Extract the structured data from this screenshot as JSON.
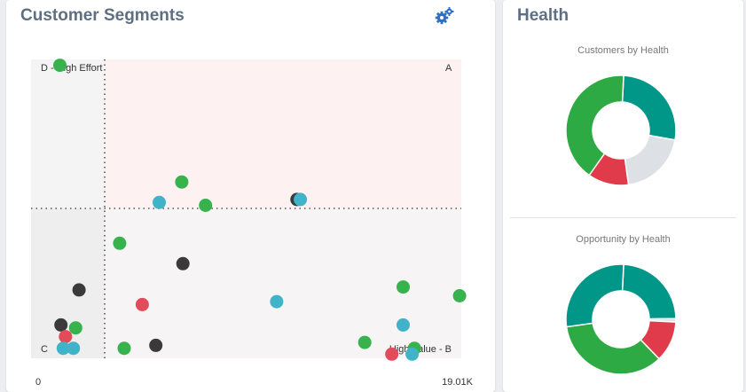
{
  "segments": {
    "title": "Customer Segments",
    "settings_icon": "gears-icon",
    "quadrant_labels": {
      "d": "D - High Effort",
      "a": "A",
      "c": "C",
      "b": "High Value - B"
    },
    "x_axis": {
      "min_label": "0",
      "max_label": "19.01K"
    }
  },
  "health": {
    "title": "Health",
    "customers_title": "Customers by Health",
    "opportunity_title": "Opportunity by Health"
  },
  "colors": {
    "green": "#37b24d",
    "teal": "#40b3c9",
    "red": "#e24b59",
    "dark": "#3a3a3a",
    "donut_teal": "#009688",
    "donut_green": "#2eaa45",
    "donut_red": "#e03b4a",
    "donut_gray": "#dde1e5",
    "title": "#5f6f82",
    "icon_blue": "#2f6fc4"
  },
  "chart_data": [
    {
      "type": "scatter",
      "title": "Customer Segments",
      "xlim": [
        0,
        19010
      ],
      "ylim": [
        0,
        1
      ],
      "quadrants": [
        "D - High Effort",
        "A",
        "C",
        "High Value - B"
      ],
      "points": [
        {
          "x": 1000,
          "y": 0.98,
          "color": "green"
        },
        {
          "x": 6400,
          "y": 0.58,
          "color": "green"
        },
        {
          "x": 5400,
          "y": 0.51,
          "color": "teal"
        },
        {
          "x": 7450,
          "y": 0.5,
          "color": "green"
        },
        {
          "x": 11500,
          "y": 0.52,
          "color": "dark"
        },
        {
          "x": 11650,
          "y": 0.52,
          "color": "teal"
        },
        {
          "x": 3650,
          "y": 0.37,
          "color": "green"
        },
        {
          "x": 6450,
          "y": 0.3,
          "color": "dark"
        },
        {
          "x": 1850,
          "y": 0.21,
          "color": "dark"
        },
        {
          "x": 16200,
          "y": 0.22,
          "color": "green"
        },
        {
          "x": 18700,
          "y": 0.19,
          "color": "green"
        },
        {
          "x": 4650,
          "y": 0.16,
          "color": "red"
        },
        {
          "x": 10600,
          "y": 0.17,
          "color": "teal"
        },
        {
          "x": 1050,
          "y": 0.09,
          "color": "dark"
        },
        {
          "x": 1700,
          "y": 0.08,
          "color": "green"
        },
        {
          "x": 16200,
          "y": 0.09,
          "color": "teal"
        },
        {
          "x": 1250,
          "y": 0.05,
          "color": "red"
        },
        {
          "x": 1150,
          "y": 0.01,
          "color": "teal"
        },
        {
          "x": 1600,
          "y": 0.01,
          "color": "teal"
        },
        {
          "x": 3850,
          "y": 0.01,
          "color": "green"
        },
        {
          "x": 5250,
          "y": 0.02,
          "color": "dark"
        },
        {
          "x": 14500,
          "y": 0.03,
          "color": "green"
        },
        {
          "x": 15700,
          "y": -0.01,
          "color": "red"
        },
        {
          "x": 16700,
          "y": 0.01,
          "color": "green"
        },
        {
          "x": 16600,
          "y": -0.01,
          "color": "teal"
        }
      ]
    },
    {
      "type": "pie",
      "title": "Customers by Health",
      "slices": [
        {
          "value": 27,
          "color": "donut_teal"
        },
        {
          "value": 20,
          "color": "donut_gray"
        },
        {
          "value": 12,
          "color": "donut_red"
        },
        {
          "value": 41,
          "color": "donut_green"
        }
      ]
    },
    {
      "type": "pie",
      "title": "Opportunity by Health",
      "slices": [
        {
          "value": 24,
          "color": "donut_teal"
        },
        {
          "value": 1,
          "color": "donut_gray"
        },
        {
          "value": 12,
          "color": "donut_red"
        },
        {
          "value": 35,
          "color": "donut_green"
        },
        {
          "value": 28,
          "color": "donut_teal"
        }
      ]
    }
  ]
}
